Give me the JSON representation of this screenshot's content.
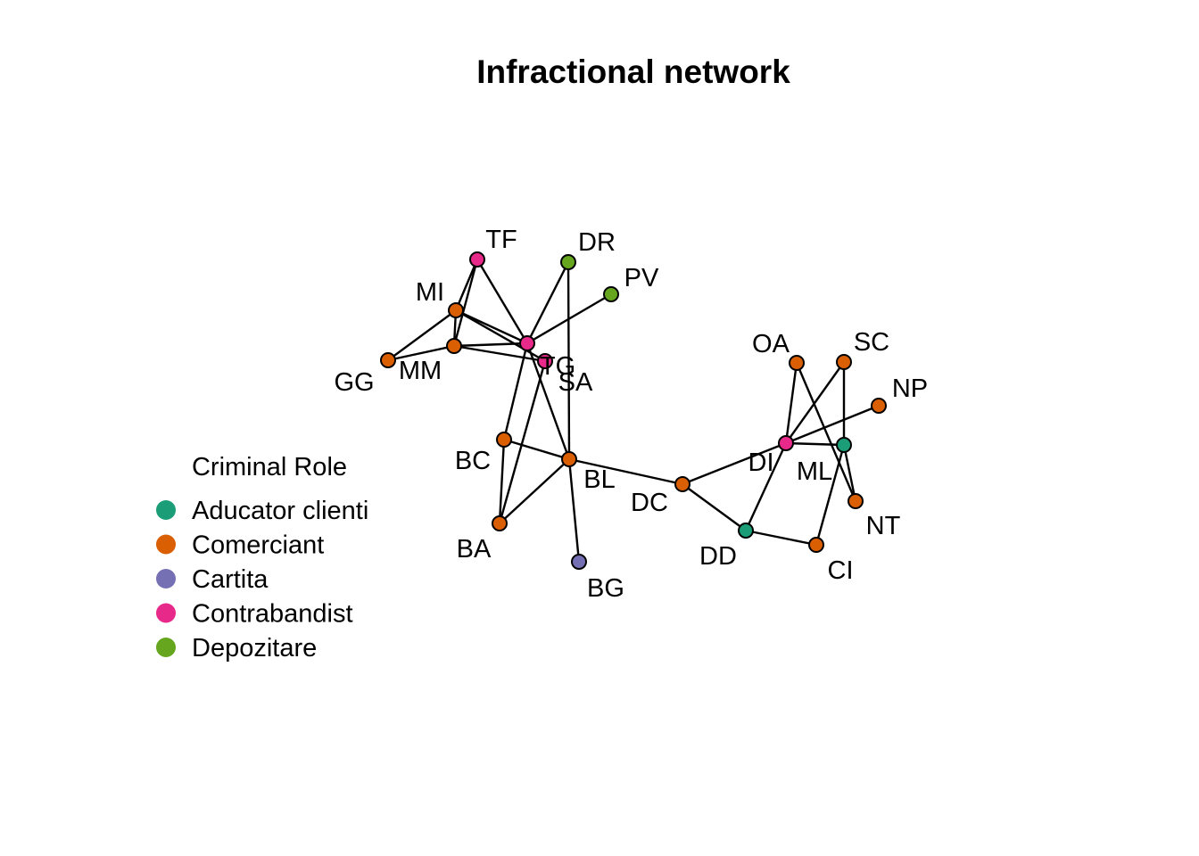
{
  "title": "Infractional network",
  "legend": {
    "title": "Criminal Role",
    "items": [
      {
        "role": "Aducator clienti",
        "color": "#1B9E77"
      },
      {
        "role": "Comerciant",
        "color": "#D95F02"
      },
      {
        "role": "Cartita",
        "color": "#7570B3"
      },
      {
        "role": "Contrabandist",
        "color": "#E7298A"
      },
      {
        "role": "Depozitare",
        "color": "#66A61E"
      }
    ]
  },
  "nodes": [
    {
      "id": "TF",
      "role": "Contrabandist"
    },
    {
      "id": "DR",
      "role": "Depozitare"
    },
    {
      "id": "PV",
      "role": "Depozitare"
    },
    {
      "id": "MI",
      "role": "Comerciant"
    },
    {
      "id": "GG",
      "role": "Comerciant"
    },
    {
      "id": "MM",
      "role": "Comerciant"
    },
    {
      "id": "TG",
      "label": "TG",
      "role": "Contrabandist"
    },
    {
      "id": "SA",
      "role": "Contrabandist"
    },
    {
      "id": "BC",
      "role": "Comerciant"
    },
    {
      "id": "BL",
      "role": "Comerciant"
    },
    {
      "id": "BA",
      "role": "Comerciant"
    },
    {
      "id": "BG",
      "role": "Cartita"
    },
    {
      "id": "DC",
      "role": "Comerciant"
    },
    {
      "id": "DD",
      "role": "Aducator clienti"
    },
    {
      "id": "CI",
      "role": "Comerciant"
    },
    {
      "id": "DI",
      "role": "Contrabandist"
    },
    {
      "id": "ML",
      "role": "Aducator clienti"
    },
    {
      "id": "NT",
      "role": "Comerciant"
    },
    {
      "id": "OA",
      "role": "Comerciant"
    },
    {
      "id": "SC",
      "role": "Comerciant"
    },
    {
      "id": "NP",
      "role": "Comerciant"
    }
  ],
  "edges": [
    [
      "TF",
      "MI"
    ],
    [
      "TF",
      "MM"
    ],
    [
      "TF",
      "TG"
    ],
    [
      "MI",
      "GG"
    ],
    [
      "MI",
      "TG"
    ],
    [
      "MI",
      "MM"
    ],
    [
      "MI",
      "SA"
    ],
    [
      "GG",
      "MM"
    ],
    [
      "MM",
      "TG"
    ],
    [
      "MM",
      "SA"
    ],
    [
      "DR",
      "TG"
    ],
    [
      "DR",
      "BL"
    ],
    [
      "PV",
      "TG"
    ],
    [
      "TG",
      "BC"
    ],
    [
      "TG",
      "BL"
    ],
    [
      "SA",
      "BA"
    ],
    [
      "BC",
      "BL"
    ],
    [
      "BC",
      "BA"
    ],
    [
      "BL",
      "BA"
    ],
    [
      "BL",
      "BG"
    ],
    [
      "BL",
      "DC"
    ],
    [
      "DC",
      "DI"
    ],
    [
      "DC",
      "DD"
    ],
    [
      "DD",
      "CI"
    ],
    [
      "DD",
      "DI"
    ],
    [
      "DI",
      "OA"
    ],
    [
      "DI",
      "SC"
    ],
    [
      "DI",
      "NP"
    ],
    [
      "DI",
      "ML"
    ],
    [
      "OA",
      "NT"
    ],
    [
      "SC",
      "ML"
    ],
    [
      "ML",
      "NT"
    ],
    [
      "ML",
      "CI"
    ]
  ]
}
